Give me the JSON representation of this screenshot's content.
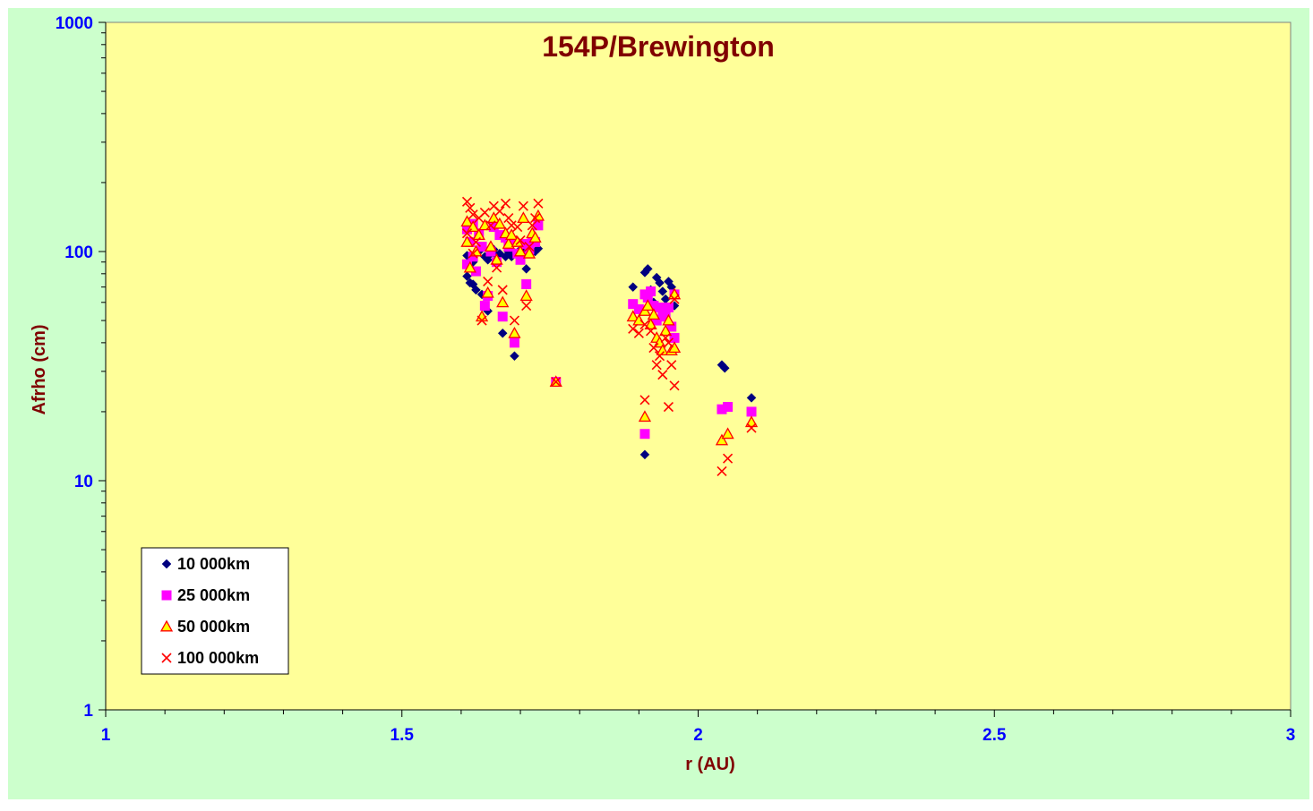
{
  "chart_data": {
    "type": "scatter",
    "title": "154P/Brewington",
    "xlabel": "r (AU)",
    "ylabel": "Afrho (cm)",
    "xlim": [
      1,
      3
    ],
    "ylim": [
      1,
      1000
    ],
    "yscale": "log",
    "x_ticks": [
      "1",
      "1.5",
      "2",
      "2.5",
      "3"
    ],
    "y_ticks": [
      "1",
      "10",
      "100",
      "1000"
    ],
    "grid": false,
    "legend_position": "bottom-left",
    "colors": {
      "outer_background": "#CCFFCC",
      "plot_background": "#FFFF99",
      "title": "#800000",
      "axis_titles": "#800000",
      "tick_labels": "#0000FF"
    },
    "series": [
      {
        "name": "10 000km",
        "marker": "diamond",
        "color": "#000080",
        "points": [
          [
            1.61,
            96
          ],
          [
            1.61,
            78
          ],
          [
            1.615,
            73
          ],
          [
            1.62,
            72
          ],
          [
            1.62,
            90
          ],
          [
            1.625,
            68
          ],
          [
            1.625,
            98
          ],
          [
            1.63,
            100
          ],
          [
            1.635,
            65
          ],
          [
            1.64,
            95
          ],
          [
            1.645,
            92
          ],
          [
            1.645,
            55
          ],
          [
            1.65,
            98
          ],
          [
            1.655,
            102
          ],
          [
            1.66,
            96
          ],
          [
            1.665,
            98
          ],
          [
            1.67,
            44
          ],
          [
            1.675,
            95
          ],
          [
            1.68,
            100
          ],
          [
            1.685,
            95
          ],
          [
            1.69,
            35
          ],
          [
            1.695,
            98
          ],
          [
            1.7,
            102
          ],
          [
            1.705,
            97
          ],
          [
            1.71,
            84
          ],
          [
            1.72,
            100
          ],
          [
            1.725,
            100
          ],
          [
            1.73,
            103
          ],
          [
            1.76,
            27
          ],
          [
            1.89,
            70
          ],
          [
            1.91,
            81
          ],
          [
            1.915,
            84
          ],
          [
            1.92,
            68
          ],
          [
            1.925,
            60
          ],
          [
            1.93,
            77
          ],
          [
            1.935,
            73
          ],
          [
            1.94,
            67
          ],
          [
            1.945,
            62
          ],
          [
            1.95,
            74
          ],
          [
            1.955,
            70
          ],
          [
            1.96,
            58
          ],
          [
            1.91,
            13
          ],
          [
            2.04,
            32
          ],
          [
            2.045,
            31
          ],
          [
            2.09,
            23
          ]
        ]
      },
      {
        "name": "25 000km",
        "marker": "square",
        "color": "#FF00FF",
        "points": [
          [
            1.61,
            88
          ],
          [
            1.61,
            125
          ],
          [
            1.615,
            110
          ],
          [
            1.62,
            132
          ],
          [
            1.62,
            95
          ],
          [
            1.625,
            82
          ],
          [
            1.63,
            120
          ],
          [
            1.635,
            105
          ],
          [
            1.64,
            58
          ],
          [
            1.645,
            64
          ],
          [
            1.65,
            100
          ],
          [
            1.655,
            128
          ],
          [
            1.66,
            90
          ],
          [
            1.665,
            118
          ],
          [
            1.67,
            52
          ],
          [
            1.675,
            115
          ],
          [
            1.68,
            105
          ],
          [
            1.685,
            110
          ],
          [
            1.69,
            40
          ],
          [
            1.695,
            98
          ],
          [
            1.7,
            92
          ],
          [
            1.705,
            108
          ],
          [
            1.71,
            72
          ],
          [
            1.715,
            102
          ],
          [
            1.72,
            112
          ],
          [
            1.725,
            110
          ],
          [
            1.73,
            130
          ],
          [
            1.76,
            27
          ],
          [
            1.89,
            59
          ],
          [
            1.9,
            56
          ],
          [
            1.91,
            65
          ],
          [
            1.915,
            63
          ],
          [
            1.92,
            67
          ],
          [
            1.925,
            58
          ],
          [
            1.93,
            50
          ],
          [
            1.935,
            57
          ],
          [
            1.94,
            55
          ],
          [
            1.945,
            52
          ],
          [
            1.95,
            57
          ],
          [
            1.955,
            47
          ],
          [
            1.96,
            42
          ],
          [
            1.96,
            65
          ],
          [
            1.91,
            16
          ],
          [
            2.04,
            20.5
          ],
          [
            2.05,
            21
          ],
          [
            2.09,
            20
          ]
        ]
      },
      {
        "name": "50 000km",
        "marker": "triangle",
        "color": "#FF0000",
        "points": [
          [
            1.61,
            110
          ],
          [
            1.61,
            135
          ],
          [
            1.615,
            85
          ],
          [
            1.62,
            128
          ],
          [
            1.625,
            100
          ],
          [
            1.63,
            118
          ],
          [
            1.635,
            52
          ],
          [
            1.64,
            130
          ],
          [
            1.645,
            66
          ],
          [
            1.65,
            105
          ],
          [
            1.655,
            140
          ],
          [
            1.66,
            92
          ],
          [
            1.665,
            132
          ],
          [
            1.67,
            60
          ],
          [
            1.675,
            120
          ],
          [
            1.68,
            108
          ],
          [
            1.685,
            118
          ],
          [
            1.69,
            44
          ],
          [
            1.695,
            110
          ],
          [
            1.7,
            100
          ],
          [
            1.705,
            140
          ],
          [
            1.71,
            64
          ],
          [
            1.715,
            98
          ],
          [
            1.72,
            120
          ],
          [
            1.725,
            115
          ],
          [
            1.73,
            143
          ],
          [
            1.76,
            27
          ],
          [
            1.89,
            52
          ],
          [
            1.9,
            50
          ],
          [
            1.91,
            55
          ],
          [
            1.915,
            58
          ],
          [
            1.92,
            48
          ],
          [
            1.925,
            53
          ],
          [
            1.93,
            42
          ],
          [
            1.935,
            40
          ],
          [
            1.94,
            37
          ],
          [
            1.945,
            45
          ],
          [
            1.95,
            50
          ],
          [
            1.955,
            37
          ],
          [
            1.96,
            38
          ],
          [
            1.96,
            65
          ],
          [
            1.91,
            19
          ],
          [
            2.04,
            15
          ],
          [
            2.05,
            16
          ],
          [
            2.09,
            18
          ]
        ]
      },
      {
        "name": "100 000km",
        "marker": "x",
        "color": "#FF0000",
        "points": [
          [
            1.61,
            165
          ],
          [
            1.61,
            120
          ],
          [
            1.615,
            155
          ],
          [
            1.62,
            145
          ],
          [
            1.62,
            98
          ],
          [
            1.625,
            110
          ],
          [
            1.63,
            140
          ],
          [
            1.635,
            50
          ],
          [
            1.64,
            148
          ],
          [
            1.645,
            74
          ],
          [
            1.65,
            130
          ],
          [
            1.655,
            158
          ],
          [
            1.66,
            85
          ],
          [
            1.665,
            150
          ],
          [
            1.67,
            68
          ],
          [
            1.675,
            162
          ],
          [
            1.68,
            140
          ],
          [
            1.685,
            130
          ],
          [
            1.69,
            50
          ],
          [
            1.695,
            128
          ],
          [
            1.7,
            112
          ],
          [
            1.705,
            158
          ],
          [
            1.71,
            58
          ],
          [
            1.715,
            105
          ],
          [
            1.72,
            130
          ],
          [
            1.725,
            140
          ],
          [
            1.73,
            162
          ],
          [
            1.76,
            27
          ],
          [
            1.89,
            46
          ],
          [
            1.9,
            44
          ],
          [
            1.91,
            48
          ],
          [
            1.92,
            45
          ],
          [
            1.925,
            38
          ],
          [
            1.93,
            32
          ],
          [
            1.935,
            35
          ],
          [
            1.94,
            29
          ],
          [
            1.945,
            42
          ],
          [
            1.95,
            40
          ],
          [
            1.955,
            32
          ],
          [
            1.96,
            26
          ],
          [
            1.96,
            62
          ],
          [
            1.95,
            21
          ],
          [
            1.91,
            22.5
          ],
          [
            2.04,
            11
          ],
          [
            2.05,
            12.5
          ],
          [
            2.09,
            17
          ]
        ]
      }
    ]
  }
}
